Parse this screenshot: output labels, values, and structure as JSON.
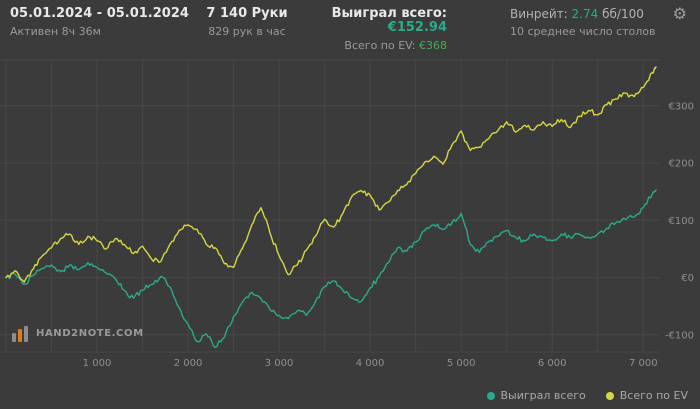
{
  "header": {
    "date_range": "05.01.2024 - 05.01.2024",
    "active_time": "Активен 8ч 36м",
    "hands": "7 140 Руки",
    "hands_per_hour": "829 рук в час",
    "won_label": "Выиграл всего:",
    "won_value": "€152.94",
    "ev_label": "Всего по EV:",
    "ev_value": "€368",
    "winrate_label": "Винрейт:",
    "winrate_value": "2.74",
    "winrate_unit": "бб/100",
    "avg_tables": "10 среднее число столов"
  },
  "icons": {
    "settings_glyph": "⚙"
  },
  "footer": {
    "logo_text": "HAND2NOTE.COM",
    "legend": [
      {
        "label": "Выиграл всего",
        "color": "#2aab8a"
      },
      {
        "label": "Всего по EV",
        "color": "#d6d743"
      }
    ]
  },
  "colors": {
    "background": "#3b3b3b",
    "grid": "#474747",
    "axis_label": "#8f8f8f",
    "won_line": "#2aab8a",
    "ev_line": "#d6d743",
    "logo_orange": "#e07b1a"
  },
  "chart_data": {
    "type": "line",
    "title": "",
    "xlabel": "",
    "ylabel": "",
    "xlim": [
      0,
      7140
    ],
    "ylim": [
      -130,
      380
    ],
    "grid": {
      "x_step": 500,
      "y_step": 100
    },
    "legend_position": "bottom-right",
    "x_ticks": [
      {
        "value": 1000,
        "label": "1 000"
      },
      {
        "value": 2000,
        "label": "2 000"
      },
      {
        "value": 3000,
        "label": "3 000"
      },
      {
        "value": 4000,
        "label": "4 000"
      },
      {
        "value": 5000,
        "label": "5 000"
      },
      {
        "value": 6000,
        "label": "6 000"
      },
      {
        "value": 7000,
        "label": "7 000"
      }
    ],
    "y_ticks": [
      {
        "value": -100,
        "label": "-€100"
      },
      {
        "value": 0,
        "label": "€0"
      },
      {
        "value": 100,
        "label": "€100"
      },
      {
        "value": 200,
        "label": "€200"
      },
      {
        "value": 300,
        "label": "€300"
      }
    ],
    "x": [
      0,
      100,
      200,
      300,
      400,
      500,
      600,
      700,
      800,
      900,
      1000,
      1100,
      1200,
      1300,
      1400,
      1500,
      1600,
      1700,
      1800,
      1900,
      2000,
      2100,
      2200,
      2300,
      2400,
      2500,
      2600,
      2700,
      2800,
      2900,
      3000,
      3100,
      3200,
      3300,
      3400,
      3500,
      3600,
      3700,
      3800,
      3900,
      4000,
      4100,
      4200,
      4300,
      4400,
      4500,
      4600,
      4700,
      4800,
      4900,
      5000,
      5100,
      5200,
      5300,
      5400,
      5500,
      5600,
      5700,
      5800,
      5900,
      6000,
      6100,
      6200,
      6300,
      6400,
      6500,
      6600,
      6700,
      6800,
      6900,
      7000,
      7100,
      7140
    ],
    "series": [
      {
        "name": "Выиграл всего",
        "color": "#2aab8a",
        "final_value": "€152.94",
        "y": [
          0,
          6,
          -12,
          4,
          16,
          22,
          10,
          22,
          14,
          26,
          18,
          8,
          -2,
          -22,
          -36,
          -22,
          -12,
          2,
          -16,
          -52,
          -82,
          -112,
          -98,
          -122,
          -104,
          -68,
          -42,
          -26,
          -36,
          -56,
          -66,
          -72,
          -58,
          -66,
          -42,
          -16,
          -6,
          -22,
          -36,
          -42,
          -18,
          2,
          26,
          52,
          46,
          62,
          82,
          92,
          84,
          96,
          112,
          58,
          44,
          62,
          72,
          82,
          70,
          64,
          76,
          70,
          64,
          76,
          70,
          76,
          70,
          76,
          86,
          96,
          102,
          106,
          122,
          146,
          152.94
        ]
      },
      {
        "name": "Всего по EV",
        "color": "#d6d743",
        "final_value": "€368",
        "y": [
          0,
          12,
          -8,
          15,
          38,
          52,
          68,
          76,
          58,
          72,
          64,
          50,
          68,
          58,
          42,
          55,
          32,
          28,
          58,
          82,
          92,
          84,
          58,
          52,
          24,
          18,
          52,
          92,
          122,
          78,
          38,
          5,
          22,
          48,
          72,
          102,
          88,
          112,
          142,
          152,
          144,
          118,
          132,
          152,
          162,
          182,
          202,
          212,
          198,
          232,
          256,
          222,
          228,
          242,
          256,
          272,
          254,
          266,
          258,
          272,
          264,
          276,
          262,
          282,
          292,
          284,
          302,
          312,
          322,
          316,
          332,
          358,
          368
        ]
      }
    ]
  }
}
